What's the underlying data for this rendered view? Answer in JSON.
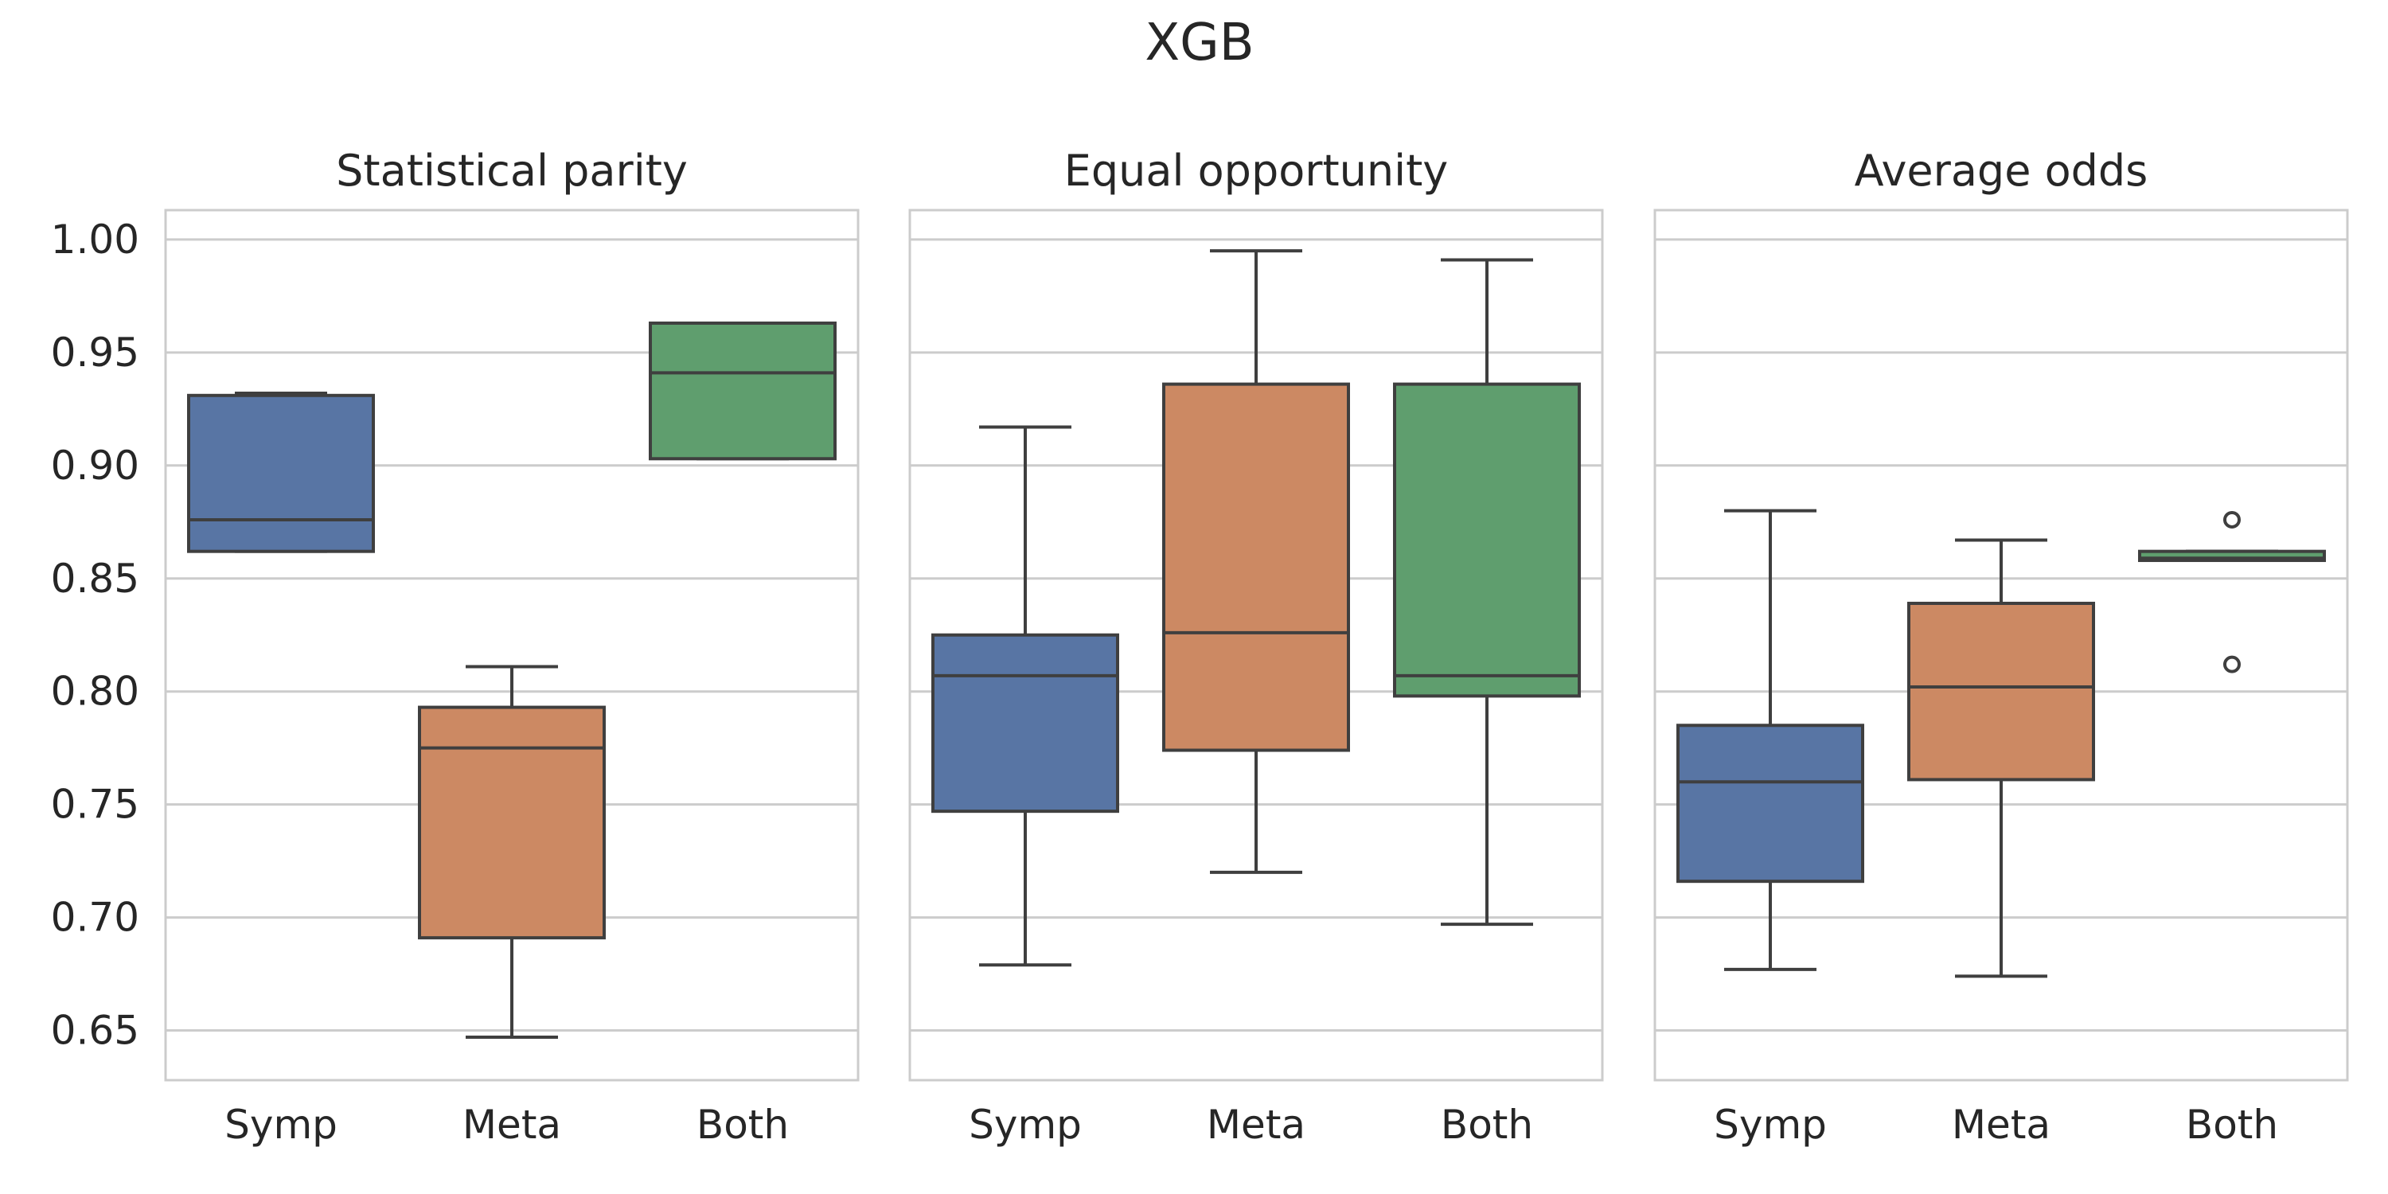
{
  "chart_data": {
    "type": "box",
    "title": "XGB",
    "ylim": [
      0.628,
      1.013
    ],
    "yticks": [
      1.0,
      0.95,
      0.9,
      0.85,
      0.8,
      0.75,
      0.7,
      0.65
    ],
    "yticklabels": [
      "1.00",
      "0.95",
      "0.90",
      "0.85",
      "0.80",
      "0.75",
      "0.70",
      "0.65"
    ],
    "grid": true,
    "sharey": true,
    "colors": {
      "Symp": "#5875a4",
      "Meta": "#cc8963",
      "Both": "#5f9e6e"
    },
    "panels": [
      {
        "title": "Statistical parity",
        "categories": [
          "Symp",
          "Meta",
          "Both"
        ],
        "boxes": [
          {
            "category": "Symp",
            "whislo": 0.862,
            "q1": 0.862,
            "med": 0.876,
            "q3": 0.931,
            "whishi": 0.932,
            "fliers": []
          },
          {
            "category": "Meta",
            "whislo": 0.647,
            "q1": 0.691,
            "med": 0.775,
            "q3": 0.793,
            "whishi": 0.811,
            "fliers": []
          },
          {
            "category": "Both",
            "whislo": 0.903,
            "q1": 0.903,
            "med": 0.941,
            "q3": 0.963,
            "whishi": 0.963,
            "fliers": []
          }
        ]
      },
      {
        "title": "Equal opportunity",
        "categories": [
          "Symp",
          "Meta",
          "Both"
        ],
        "boxes": [
          {
            "category": "Symp",
            "whislo": 0.679,
            "q1": 0.747,
            "med": 0.807,
            "q3": 0.825,
            "whishi": 0.917,
            "fliers": []
          },
          {
            "category": "Meta",
            "whislo": 0.72,
            "q1": 0.774,
            "med": 0.826,
            "q3": 0.936,
            "whishi": 0.995,
            "fliers": []
          },
          {
            "category": "Both",
            "whislo": 0.697,
            "q1": 0.798,
            "med": 0.807,
            "q3": 0.936,
            "whishi": 0.991,
            "fliers": []
          }
        ]
      },
      {
        "title": "Average odds",
        "categories": [
          "Symp",
          "Meta",
          "Both"
        ],
        "boxes": [
          {
            "category": "Symp",
            "whislo": 0.677,
            "q1": 0.716,
            "med": 0.76,
            "q3": 0.785,
            "whishi": 0.88,
            "fliers": []
          },
          {
            "category": "Meta",
            "whislo": 0.674,
            "q1": 0.761,
            "med": 0.802,
            "q3": 0.839,
            "whishi": 0.867,
            "fliers": []
          },
          {
            "category": "Both",
            "whislo": 0.858,
            "q1": 0.858,
            "med": 0.859,
            "q3": 0.862,
            "whishi": 0.862,
            "fliers": [
              0.876,
              0.812
            ]
          }
        ]
      }
    ]
  }
}
